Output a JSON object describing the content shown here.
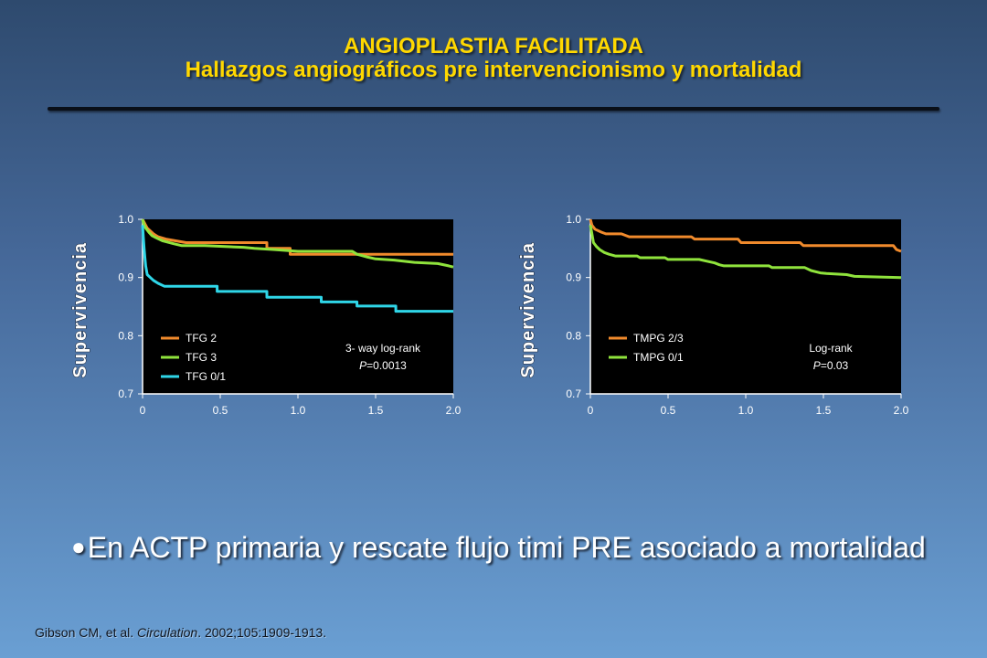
{
  "header": {
    "title": "ANGIOPLASTIA FACILITADA",
    "subtitle": "Hallazgos angiográficos pre intervencionismo y mortalidad"
  },
  "chart_data": [
    {
      "type": "line",
      "ylabel": "Supervivencia",
      "xlabel": "",
      "xlim": [
        0,
        2.0
      ],
      "ylim": [
        0.7,
        1.0
      ],
      "xticks": [
        "0",
        "0.5",
        "1.0",
        "1.5",
        "2.0"
      ],
      "yticks": [
        "0.7",
        "0.8",
        "0.9",
        "1.0"
      ],
      "annotation": {
        "line1": "3- way log-rank",
        "line2_prefix": "P",
        "line2_value": "=0.0013"
      },
      "series": [
        {
          "name": "TFG 2",
          "color": "#f08a2c",
          "points": [
            [
              0,
              1.0
            ],
            [
              0.01,
              0.995
            ],
            [
              0.02,
              0.99
            ],
            [
              0.03,
              0.985
            ],
            [
              0.05,
              0.98
            ],
            [
              0.07,
              0.975
            ],
            [
              0.1,
              0.97
            ],
            [
              0.15,
              0.966
            ],
            [
              0.28,
              0.96
            ],
            [
              0.8,
              0.96
            ],
            [
              0.8,
              0.95
            ],
            [
              0.95,
              0.95
            ],
            [
              0.95,
              0.94
            ],
            [
              2.0,
              0.94
            ]
          ]
        },
        {
          "name": "TFG 3",
          "color": "#8fe33c",
          "points": [
            [
              0,
              1.0
            ],
            [
              0.01,
              0.99
            ],
            [
              0.02,
              0.985
            ],
            [
              0.04,
              0.978
            ],
            [
              0.06,
              0.972
            ],
            [
              0.09,
              0.968
            ],
            [
              0.13,
              0.963
            ],
            [
              0.2,
              0.958
            ],
            [
              0.25,
              0.955
            ],
            [
              0.4,
              0.955
            ],
            [
              0.55,
              0.953
            ],
            [
              0.65,
              0.952
            ],
            [
              0.72,
              0.95
            ],
            [
              0.85,
              0.948
            ],
            [
              1.0,
              0.945
            ],
            [
              1.35,
              0.945
            ],
            [
              1.38,
              0.94
            ],
            [
              1.45,
              0.935
            ],
            [
              1.5,
              0.932
            ],
            [
              1.62,
              0.93
            ],
            [
              1.75,
              0.926
            ],
            [
              1.9,
              0.924
            ],
            [
              1.97,
              0.92
            ],
            [
              2.0,
              0.918
            ]
          ]
        },
        {
          "name": "TFG 0/1",
          "color": "#2fd6e8",
          "points": [
            [
              0,
              0.99
            ],
            [
              0.005,
              0.97
            ],
            [
              0.01,
              0.95
            ],
            [
              0.015,
              0.935
            ],
            [
              0.02,
              0.92
            ],
            [
              0.03,
              0.905
            ],
            [
              0.05,
              0.9
            ],
            [
              0.07,
              0.895
            ],
            [
              0.1,
              0.89
            ],
            [
              0.14,
              0.885
            ],
            [
              0.28,
              0.885
            ],
            [
              0.48,
              0.885
            ],
            [
              0.48,
              0.876
            ],
            [
              0.8,
              0.876
            ],
            [
              0.8,
              0.866
            ],
            [
              1.15,
              0.866
            ],
            [
              1.15,
              0.858
            ],
            [
              1.38,
              0.858
            ],
            [
              1.38,
              0.851
            ],
            [
              1.63,
              0.851
            ],
            [
              1.63,
              0.842
            ],
            [
              2.0,
              0.842
            ]
          ]
        }
      ]
    },
    {
      "type": "line",
      "ylabel": "Supervivencia",
      "xlabel": "",
      "xlim": [
        0,
        2.0
      ],
      "ylim": [
        0.7,
        1.0
      ],
      "xticks": [
        "0",
        "0.5",
        "1.0",
        "1.5",
        "2.0"
      ],
      "yticks": [
        "0.7",
        "0.8",
        "0.9",
        "1.0"
      ],
      "annotation": {
        "line1": "Log-rank",
        "line2_prefix": "P",
        "line2_value": "=0.03"
      },
      "series": [
        {
          "name": "TMPG 2/3",
          "color": "#f08a2c",
          "points": [
            [
              0,
              1.0
            ],
            [
              0.01,
              0.99
            ],
            [
              0.03,
              0.983
            ],
            [
              0.07,
              0.978
            ],
            [
              0.1,
              0.975
            ],
            [
              0.2,
              0.975
            ],
            [
              0.25,
              0.97
            ],
            [
              0.65,
              0.97
            ],
            [
              0.67,
              0.966
            ],
            [
              0.95,
              0.966
            ],
            [
              0.97,
              0.96
            ],
            [
              1.35,
              0.96
            ],
            [
              1.37,
              0.955
            ],
            [
              1.95,
              0.955
            ],
            [
              1.97,
              0.948
            ],
            [
              2.0,
              0.945
            ]
          ]
        },
        {
          "name": "TMPG 0/1",
          "color": "#8fe33c",
          "points": [
            [
              0,
              0.99
            ],
            [
              0.01,
              0.975
            ],
            [
              0.02,
              0.96
            ],
            [
              0.04,
              0.953
            ],
            [
              0.06,
              0.948
            ],
            [
              0.09,
              0.943
            ],
            [
              0.12,
              0.94
            ],
            [
              0.16,
              0.937
            ],
            [
              0.3,
              0.937
            ],
            [
              0.32,
              0.934
            ],
            [
              0.48,
              0.934
            ],
            [
              0.5,
              0.931
            ],
            [
              0.7,
              0.931
            ],
            [
              0.75,
              0.928
            ],
            [
              0.8,
              0.925
            ],
            [
              0.83,
              0.922
            ],
            [
              0.86,
              0.92
            ],
            [
              1.15,
              0.92
            ],
            [
              1.17,
              0.917
            ],
            [
              1.38,
              0.917
            ],
            [
              1.42,
              0.912
            ],
            [
              1.48,
              0.908
            ],
            [
              1.52,
              0.907
            ],
            [
              1.65,
              0.905
            ],
            [
              1.7,
              0.902
            ],
            [
              2.0,
              0.9
            ]
          ]
        }
      ]
    }
  ],
  "bullet": {
    "dot": "●",
    "text": "En ACTP primaria y rescate flujo timi PRE asociado a mortalidad"
  },
  "citation": {
    "authors": "Gibson CM, et al. ",
    "journal": "Circulation",
    "rest": ". 2002;105:1909-1913."
  }
}
